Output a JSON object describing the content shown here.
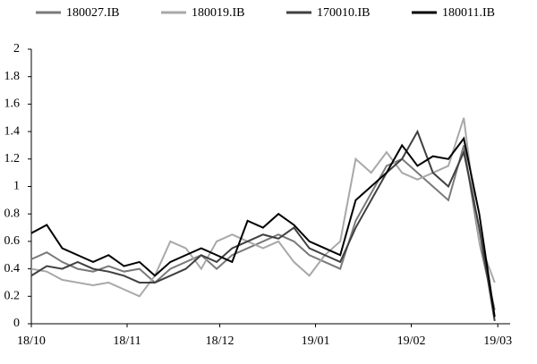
{
  "chart_data": {
    "type": "line",
    "x": [
      0,
      5,
      10,
      15,
      20,
      25,
      30,
      35,
      40,
      45,
      50,
      55,
      60,
      65,
      70,
      75,
      80,
      85,
      90,
      95,
      100,
      105,
      110,
      115,
      120,
      125,
      130,
      135,
      140,
      145,
      150
    ],
    "series": [
      {
        "name": "180027.IB",
        "color": "#7a7a7a",
        "values": [
          0.47,
          0.52,
          0.45,
          0.4,
          0.38,
          0.42,
          0.38,
          0.4,
          0.3,
          0.4,
          0.45,
          0.5,
          0.4,
          0.5,
          0.55,
          0.6,
          0.65,
          0.6,
          0.5,
          0.45,
          0.4,
          0.75,
          0.95,
          1.15,
          1.2,
          1.1,
          1.0,
          0.9,
          1.3,
          0.6,
          0.1
        ]
      },
      {
        "name": "180019.IB",
        "color": "#a8a8a8",
        "values": [
          0.4,
          0.38,
          0.32,
          0.3,
          0.28,
          0.3,
          0.25,
          0.2,
          0.35,
          0.6,
          0.55,
          0.4,
          0.6,
          0.65,
          0.6,
          0.55,
          0.6,
          0.45,
          0.35,
          0.5,
          0.6,
          1.2,
          1.1,
          1.25,
          1.1,
          1.05,
          1.1,
          1.15,
          1.5,
          0.6,
          0.3
        ]
      },
      {
        "name": "170010.IB",
        "color": "#404040",
        "values": [
          0.35,
          0.42,
          0.4,
          0.45,
          0.4,
          0.38,
          0.35,
          0.3,
          0.3,
          0.35,
          0.4,
          0.5,
          0.45,
          0.55,
          0.6,
          0.65,
          0.62,
          0.7,
          0.55,
          0.5,
          0.45,
          0.7,
          0.9,
          1.1,
          1.2,
          1.4,
          1.1,
          1.0,
          1.25,
          0.7,
          0.02
        ]
      },
      {
        "name": "180011.IB",
        "color": "#000000",
        "values": [
          0.66,
          0.72,
          0.55,
          0.5,
          0.45,
          0.5,
          0.42,
          0.45,
          0.35,
          0.45,
          0.5,
          0.55,
          0.5,
          0.45,
          0.75,
          0.7,
          0.8,
          0.72,
          0.6,
          0.55,
          0.5,
          0.9,
          1.0,
          1.1,
          1.3,
          1.15,
          1.22,
          1.2,
          1.35,
          0.8,
          0.05
        ]
      }
    ],
    "xlim": [
      0,
      155
    ],
    "xticks": [
      {
        "value": 0,
        "label": "18/10"
      },
      {
        "value": 31,
        "label": "18/11"
      },
      {
        "value": 61,
        "label": "18/12"
      },
      {
        "value": 92,
        "label": "19/01"
      },
      {
        "value": 123,
        "label": "19/02"
      },
      {
        "value": 151,
        "label": "19/03"
      }
    ],
    "ylim": [
      0,
      2
    ],
    "yticks": [
      0,
      0.2,
      0.4,
      0.6,
      0.8,
      1,
      1.2,
      1.4,
      1.6,
      1.8,
      2
    ]
  }
}
